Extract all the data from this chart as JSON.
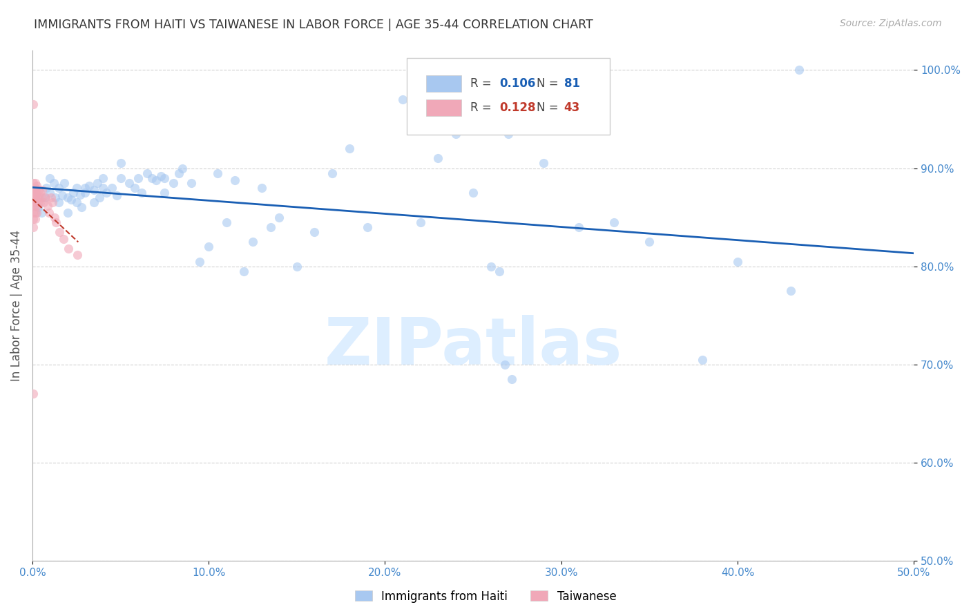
{
  "title": "IMMIGRANTS FROM HAITI VS TAIWANESE IN LABOR FORCE | AGE 35-44 CORRELATION CHART",
  "source": "Source: ZipAtlas.com",
  "ylabel": "In Labor Force | Age 35-44",
  "xlim": [
    0.0,
    50.0
  ],
  "ylim": [
    50.0,
    102.0
  ],
  "xticks": [
    0.0,
    10.0,
    20.0,
    30.0,
    40.0,
    50.0
  ],
  "xticklabels": [
    "0.0%",
    "10.0%",
    "20.0%",
    "30.0%",
    "40.0%",
    "50.0%"
  ],
  "yticks": [
    50.0,
    60.0,
    70.0,
    80.0,
    90.0,
    100.0
  ],
  "yticklabels": [
    "50.0%",
    "60.0%",
    "70.0%",
    "80.0%",
    "90.0%",
    "100.0%"
  ],
  "haiti_color": "#a8c8f0",
  "taiwan_color": "#f0a8b8",
  "trend_haiti_color": "#1a5fb4",
  "trend_taiwan_color": "#c0392b",
  "legend_R_haiti": "0.106",
  "legend_N_haiti": "81",
  "legend_R_taiwan": "0.128",
  "legend_N_taiwan": "43",
  "haiti_x": [
    0.3,
    0.5,
    0.7,
    0.8,
    1.0,
    1.0,
    1.2,
    1.3,
    1.5,
    1.5,
    1.7,
    1.8,
    2.0,
    2.0,
    2.2,
    2.3,
    2.5,
    2.5,
    2.7,
    2.8,
    3.0,
    3.0,
    3.2,
    3.5,
    3.5,
    3.7,
    3.8,
    4.0,
    4.0,
    4.2,
    4.5,
    4.8,
    5.0,
    5.0,
    5.5,
    5.8,
    6.0,
    6.2,
    6.5,
    6.8,
    7.0,
    7.3,
    7.5,
    7.5,
    8.0,
    8.3,
    8.5,
    9.0,
    9.5,
    10.0,
    10.5,
    11.0,
    11.5,
    12.0,
    12.5,
    13.0,
    13.5,
    14.0,
    15.0,
    16.0,
    17.0,
    18.0,
    19.0,
    21.0,
    22.0,
    23.0,
    24.0,
    25.0,
    27.0,
    29.0,
    31.0,
    33.0,
    35.0,
    38.0,
    40.0,
    43.0,
    43.5,
    26.0,
    26.5,
    26.8,
    27.2
  ],
  "haiti_y": [
    86.0,
    85.5,
    87.0,
    88.0,
    87.5,
    89.0,
    88.5,
    87.0,
    86.5,
    88.0,
    87.2,
    88.5,
    87.0,
    85.5,
    86.8,
    87.5,
    88.0,
    86.5,
    87.3,
    86.0,
    88.0,
    87.5,
    88.2,
    87.8,
    86.5,
    88.5,
    87.0,
    88.0,
    89.0,
    87.5,
    88.0,
    87.2,
    89.0,
    90.5,
    88.5,
    88.0,
    89.0,
    87.5,
    89.5,
    89.0,
    88.8,
    89.2,
    87.5,
    89.0,
    88.5,
    89.5,
    90.0,
    88.5,
    80.5,
    82.0,
    89.5,
    84.5,
    88.8,
    79.5,
    82.5,
    88.0,
    84.0,
    85.0,
    80.0,
    83.5,
    89.5,
    92.0,
    84.0,
    97.0,
    84.5,
    91.0,
    93.5,
    87.5,
    93.5,
    90.5,
    84.0,
    84.5,
    82.5,
    70.5,
    80.5,
    77.5,
    100.0,
    80.0,
    79.5,
    70.0,
    68.5
  ],
  "taiwan_x": [
    0.05,
    0.05,
    0.05,
    0.05,
    0.05,
    0.05,
    0.05,
    0.05,
    0.05,
    0.05,
    0.05,
    0.05,
    0.15,
    0.15,
    0.15,
    0.15,
    0.15,
    0.15,
    0.15,
    0.25,
    0.25,
    0.25,
    0.25,
    0.25,
    0.35,
    0.35,
    0.35,
    0.45,
    0.45,
    0.55,
    0.55,
    0.65,
    0.75,
    0.85,
    0.95,
    1.05,
    1.15,
    1.25,
    1.35,
    1.55,
    1.75,
    2.05,
    2.55
  ],
  "taiwan_y": [
    96.5,
    87.5,
    88.5,
    87.8,
    87.2,
    86.5,
    87.0,
    86.2,
    85.5,
    84.8,
    84.0,
    67.0,
    88.5,
    88.0,
    87.5,
    87.0,
    86.2,
    85.5,
    84.8,
    88.2,
    87.5,
    87.0,
    86.2,
    85.5,
    87.8,
    87.0,
    86.5,
    87.5,
    86.5,
    87.8,
    87.0,
    86.5,
    87.0,
    86.2,
    85.5,
    87.0,
    86.5,
    85.0,
    84.5,
    83.5,
    82.8,
    81.8,
    81.2
  ],
  "background_color": "#ffffff",
  "grid_color": "#cccccc",
  "title_color": "#333333",
  "axis_label_color": "#555555",
  "tick_color": "#4488cc",
  "marker_size": 90,
  "dot_alpha": 0.6,
  "watermark_text": "ZIPatlas",
  "watermark_color": "#ddeeff",
  "legend_label_haiti": "Immigrants from Haiti",
  "legend_label_taiwan": "Taiwanese"
}
